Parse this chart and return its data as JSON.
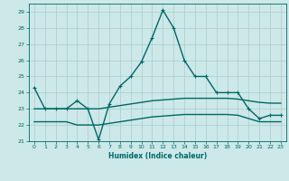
{
  "xlabel": "Humidex (Indice chaleur)",
  "ylabel": "",
  "bg_color": "#cce8e8",
  "grid_color": "#aacccc",
  "line_color": "#006868",
  "xlim": [
    -0.5,
    23.5
  ],
  "ylim": [
    21.0,
    29.5
  ],
  "yticks": [
    21,
    22,
    23,
    24,
    25,
    26,
    27,
    28,
    29
  ],
  "xticks": [
    0,
    1,
    2,
    3,
    4,
    5,
    6,
    7,
    8,
    9,
    10,
    11,
    12,
    13,
    14,
    15,
    16,
    17,
    18,
    19,
    20,
    21,
    22,
    23
  ],
  "series": [
    {
      "x": [
        0,
        1,
        2,
        3,
        4,
        5,
        6,
        7,
        8,
        9,
        10,
        11,
        12,
        13,
        14,
        15,
        16,
        17,
        18,
        19,
        20,
        21,
        22,
        23
      ],
      "y": [
        24.3,
        23.0,
        23.0,
        23.0,
        23.5,
        23.0,
        21.1,
        23.3,
        24.4,
        25.0,
        25.9,
        27.4,
        29.1,
        28.0,
        26.0,
        25.0,
        25.0,
        24.0,
        24.0,
        24.0,
        23.0,
        22.4,
        22.6,
        22.6
      ],
      "marker": "+",
      "lw": 1.0
    },
    {
      "x": [
        0,
        1,
        2,
        3,
        4,
        5,
        6,
        7,
        8,
        9,
        10,
        11,
        12,
        13,
        14,
        15,
        16,
        17,
        18,
        19,
        20,
        21,
        22,
        23
      ],
      "y": [
        23.0,
        23.0,
        23.0,
        23.0,
        23.0,
        23.0,
        23.0,
        23.1,
        23.2,
        23.3,
        23.4,
        23.5,
        23.55,
        23.6,
        23.65,
        23.65,
        23.65,
        23.65,
        23.65,
        23.6,
        23.5,
        23.4,
        23.35,
        23.35
      ],
      "marker": null,
      "lw": 1.0
    },
    {
      "x": [
        0,
        1,
        2,
        3,
        4,
        5,
        6,
        7,
        8,
        9,
        10,
        11,
        12,
        13,
        14,
        15,
        16,
        17,
        18,
        19,
        20,
        21,
        22,
        23
      ],
      "y": [
        22.2,
        22.2,
        22.2,
        22.2,
        22.0,
        22.0,
        22.0,
        22.1,
        22.2,
        22.3,
        22.4,
        22.5,
        22.55,
        22.6,
        22.65,
        22.65,
        22.65,
        22.65,
        22.65,
        22.6,
        22.4,
        22.2,
        22.2,
        22.2
      ],
      "marker": null,
      "lw": 1.0
    }
  ]
}
